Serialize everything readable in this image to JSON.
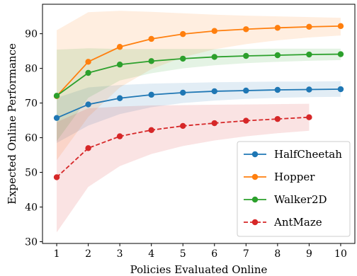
{
  "chart_data": {
    "type": "line",
    "xlabel": "Policies Evaluated Online",
    "ylabel": "Expected Online Performance",
    "xlim": [
      0.55,
      10.45
    ],
    "ylim": [
      29.5,
      98.5
    ],
    "xticks": [
      1,
      2,
      3,
      4,
      5,
      6,
      7,
      8,
      9,
      10
    ],
    "yticks": [
      30,
      40,
      50,
      60,
      70,
      80,
      90
    ],
    "grid": false,
    "legend_position": "lower-right",
    "series": [
      {
        "name": "HalfCheetah",
        "color": "#1f77b4",
        "linestyle": "solid",
        "marker": "circle",
        "x": [
          1,
          2,
          3,
          4,
          5,
          6,
          7,
          8,
          9,
          10
        ],
        "values": [
          65.7,
          69.6,
          71.4,
          72.4,
          73.0,
          73.4,
          73.6,
          73.8,
          73.9,
          74.0
        ],
        "band_upper": [
          71.5,
          74.5,
          75.2,
          75.6,
          75.8,
          76.0,
          76.1,
          76.2,
          76.2,
          76.3
        ],
        "band_lower": [
          58.5,
          63.5,
          66.8,
          68.8,
          70.0,
          70.7,
          71.2,
          71.5,
          71.7,
          71.8
        ]
      },
      {
        "name": "Hopper",
        "color": "#ff7f0e",
        "linestyle": "solid",
        "marker": "circle",
        "x": [
          1,
          2,
          3,
          4,
          5,
          6,
          7,
          8,
          9,
          10
        ],
        "values": [
          72.0,
          81.9,
          86.2,
          88.5,
          89.9,
          90.8,
          91.3,
          91.7,
          92.0,
          92.2
        ],
        "band_upper": [
          91.0,
          96.2,
          96.6,
          96.3,
          95.9,
          95.5,
          95.2,
          95.0,
          94.8,
          94.6
        ],
        "band_lower": [
          53.5,
          66.0,
          74.5,
          79.8,
          83.2,
          85.5,
          87.0,
          88.1,
          88.9,
          89.5
        ]
      },
      {
        "name": "Walker2D",
        "color": "#2ca02c",
        "linestyle": "solid",
        "marker": "circle",
        "x": [
          1,
          2,
          3,
          4,
          5,
          6,
          7,
          8,
          9,
          10
        ],
        "values": [
          72.1,
          78.7,
          81.1,
          82.1,
          82.8,
          83.3,
          83.6,
          83.8,
          84.0,
          84.1
        ],
        "band_upper": [
          85.4,
          85.8,
          85.6,
          85.6,
          85.6,
          85.6,
          85.6,
          85.7,
          85.7,
          85.7
        ],
        "band_lower": [
          59.0,
          71.5,
          76.5,
          78.6,
          80.0,
          80.9,
          81.5,
          81.9,
          82.2,
          82.4
        ]
      },
      {
        "name": "AntMaze",
        "color": "#d62728",
        "linestyle": "dashed",
        "marker": "circle",
        "x": [
          1,
          2,
          3,
          4,
          5,
          6,
          7,
          8,
          9
        ],
        "values": [
          48.6,
          57.0,
          60.4,
          62.2,
          63.4,
          64.2,
          64.9,
          65.4,
          65.9
        ],
        "band_upper": [
          64.5,
          68.5,
          69.0,
          69.3,
          69.4,
          69.5,
          69.6,
          69.7,
          69.8
        ],
        "band_lower": [
          32.7,
          45.8,
          51.8,
          55.3,
          57.6,
          59.2,
          60.4,
          61.3,
          62.0
        ]
      }
    ]
  }
}
